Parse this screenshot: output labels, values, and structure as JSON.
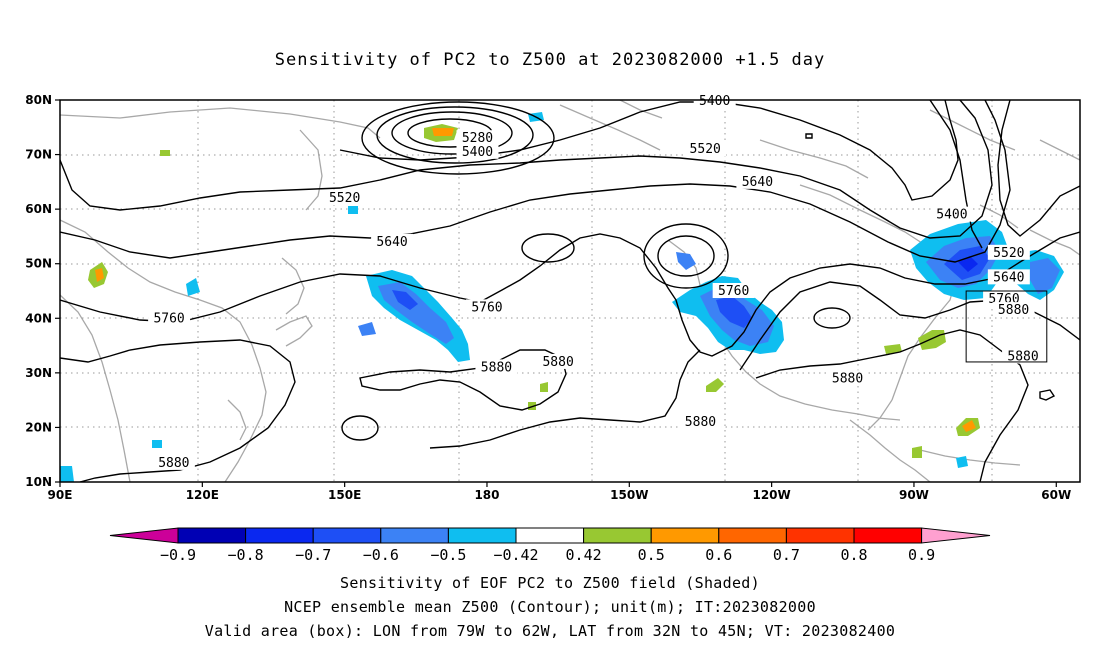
{
  "chart_data": {
    "type": "heatmap",
    "title": "Sensitivity of PC2 to Z500 at 2023082000 +1.5 day",
    "lon_range": [
      90,
      305
    ],
    "lat_range": [
      10,
      80
    ],
    "x_ticks": [
      {
        "lon": 90,
        "label": "90E"
      },
      {
        "lon": 120,
        "label": "120E"
      },
      {
        "lon": 150,
        "label": "150E"
      },
      {
        "lon": 180,
        "label": "180"
      },
      {
        "lon": 210,
        "label": "150W"
      },
      {
        "lon": 240,
        "label": "120W"
      },
      {
        "lon": 270,
        "label": "90W"
      },
      {
        "lon": 300,
        "label": "60W"
      }
    ],
    "y_ticks": [
      {
        "lat": 10,
        "label": "10N"
      },
      {
        "lat": 20,
        "label": "20N"
      },
      {
        "lat": 30,
        "label": "30N"
      },
      {
        "lat": 40,
        "label": "40N"
      },
      {
        "lat": 50,
        "label": "50N"
      },
      {
        "lat": 60,
        "label": "60N"
      },
      {
        "lat": 70,
        "label": "70N"
      },
      {
        "lat": 80,
        "label": "80N"
      }
    ],
    "grid": true,
    "colorbar": {
      "levels": [
        "-0.9",
        "-0.8",
        "-0.7",
        "-0.6",
        "-0.5",
        "-0.42",
        "0.42",
        "0.5",
        "0.6",
        "0.7",
        "0.8",
        "0.9"
      ],
      "colors": [
        "#cc0099",
        "#0000b4",
        "#0a28f0",
        "#1e4ff5",
        "#3c82f5",
        "#0fbef0",
        "#ffffff",
        "#98c832",
        "#ff9900",
        "#ff6600",
        "#ff3300",
        "#ff0000",
        "#ffa0d0"
      ]
    },
    "contour_labels": [
      {
        "text": "5280",
        "lon": 178,
        "lat": 73
      },
      {
        "text": "5400",
        "lon": 178,
        "lat": 70.5
      },
      {
        "text": "5400",
        "lon": 228,
        "lat": 79.8
      },
      {
        "text": "5400",
        "lon": 278,
        "lat": 59
      },
      {
        "text": "5520",
        "lon": 150,
        "lat": 62
      },
      {
        "text": "5520",
        "lon": 226,
        "lat": 71
      },
      {
        "text": "5520",
        "lon": 290,
        "lat": 52
      },
      {
        "text": "5640",
        "lon": 160,
        "lat": 54
      },
      {
        "text": "5640",
        "lon": 237,
        "lat": 65
      },
      {
        "text": "5640",
        "lon": 290,
        "lat": 47.5
      },
      {
        "text": "5760",
        "lon": 113,
        "lat": 40
      },
      {
        "text": "5760",
        "lon": 180,
        "lat": 42
      },
      {
        "text": "5760",
        "lon": 232,
        "lat": 45
      },
      {
        "text": "5760",
        "lon": 289,
        "lat": 43.5
      },
      {
        "text": "5880",
        "lon": 182,
        "lat": 31
      },
      {
        "text": "5880",
        "lon": 195,
        "lat": 32
      },
      {
        "text": "5880",
        "lon": 256,
        "lat": 29
      },
      {
        "text": "5880",
        "lon": 225,
        "lat": 21
      },
      {
        "text": "5880",
        "lon": 114,
        "lat": 13.5
      },
      {
        "text": "5880",
        "lon": 291,
        "lat": 41.5
      },
      {
        "text": "5880",
        "lon": 293,
        "lat": 33
      }
    ],
    "valid_box": {
      "lon": [
        281,
        298
      ],
      "lat": [
        32,
        45
      ]
    }
  },
  "captions": {
    "line1": "Sensitivity of EOF PC2 to Z500 field (Shaded)",
    "line2": "NCEP ensemble mean Z500 (Contour); unit(m); IT:2023082000",
    "line3": "Valid area (box): LON from 79W to 62W, LAT from 32N to 45N; VT: 2023082400"
  }
}
